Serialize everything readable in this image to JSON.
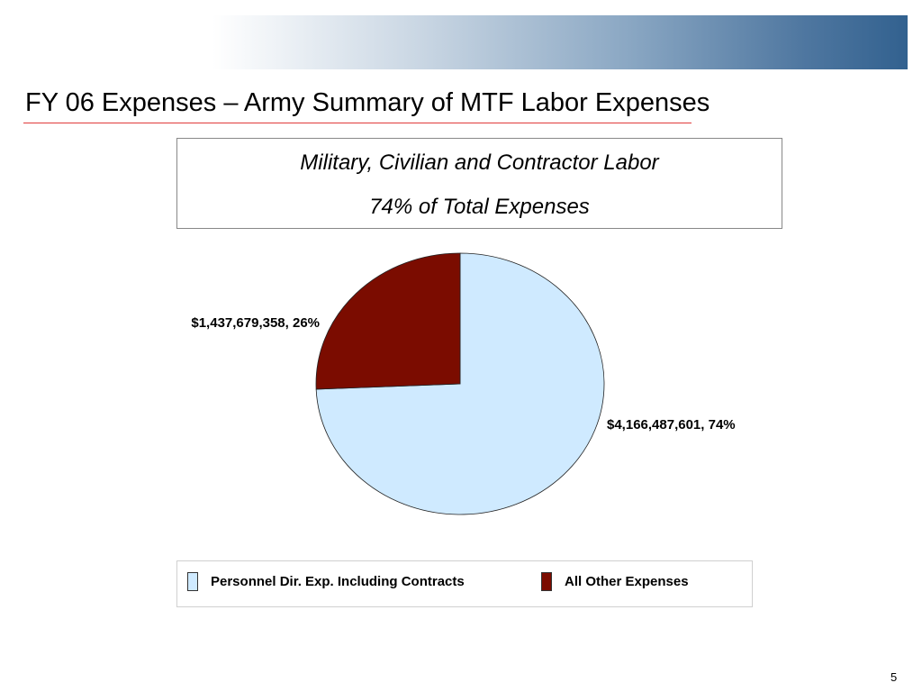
{
  "slide": {
    "title": "FY 06 Expenses – Army Summary of MTF Labor Expenses",
    "subtitle_line1": "Military, Civilian and Contractor Labor",
    "subtitle_line2": "74% of Total Expenses",
    "page_number": "5"
  },
  "chart_data": {
    "type": "pie",
    "title": "",
    "legend_position": "bottom",
    "slices": [
      {
        "name": "Personnel Dir. Exp. Including Contracts",
        "value": 4166487601,
        "percent": 74,
        "label": "$4,166,487,601, 74%",
        "color": "#cfeaff"
      },
      {
        "name": "All Other Expenses",
        "value": 1437679358,
        "percent": 26,
        "label": "$1,437,679,358, 26%",
        "color": "#7b0c00"
      }
    ]
  }
}
